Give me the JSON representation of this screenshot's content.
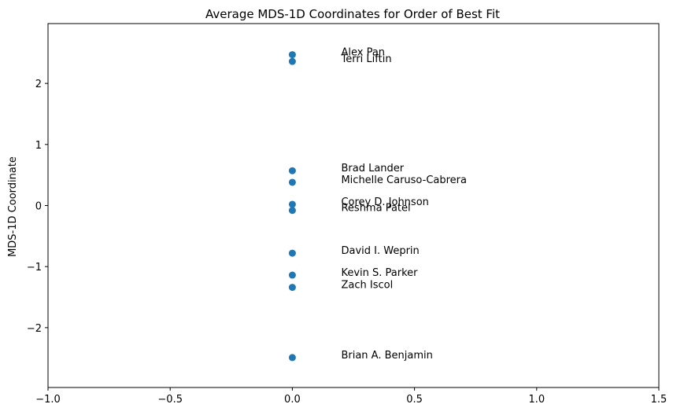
{
  "chart_data": {
    "type": "scatter",
    "title": "Average MDS-1D Coordinates for Order of Best Fit",
    "xlabel": "",
    "ylabel": "MDS-1D Coordinate",
    "xlim": [
      -1.0,
      1.5
    ],
    "ylim": [
      -2.98,
      2.98
    ],
    "x_ticks": [
      -1.0,
      -0.5,
      0.0,
      0.5,
      1.0,
      1.5
    ],
    "x_tick_labels": [
      "−1.0",
      "−0.5",
      "0.0",
      "0.5",
      "1.0",
      "1.5"
    ],
    "y_ticks": [
      -2,
      -1,
      0,
      1,
      2
    ],
    "y_tick_labels": [
      "−2",
      "−1",
      "0",
      "1",
      "2"
    ],
    "grid": false,
    "marker_color": "#1f77b4",
    "label_x": 0.2,
    "points": [
      {
        "label": "Alex Pan",
        "x": 0,
        "y": 2.47
      },
      {
        "label": "Terri Liftin",
        "x": 0,
        "y": 2.36
      },
      {
        "label": "Brad Lander",
        "x": 0,
        "y": 0.57
      },
      {
        "label": "Michelle Caruso-Cabrera",
        "x": 0,
        "y": 0.38
      },
      {
        "label": "Corey D. Johnson",
        "x": 0,
        "y": 0.02
      },
      {
        "label": "Reshma Patel",
        "x": 0,
        "y": -0.08
      },
      {
        "label": "David I. Weprin",
        "x": 0,
        "y": -0.78
      },
      {
        "label": "Kevin S. Parker",
        "x": 0,
        "y": -1.14
      },
      {
        "label": "Zach Iscol",
        "x": 0,
        "y": -1.34
      },
      {
        "label": "Brian A. Benjamin",
        "x": 0,
        "y": -2.49
      }
    ]
  }
}
